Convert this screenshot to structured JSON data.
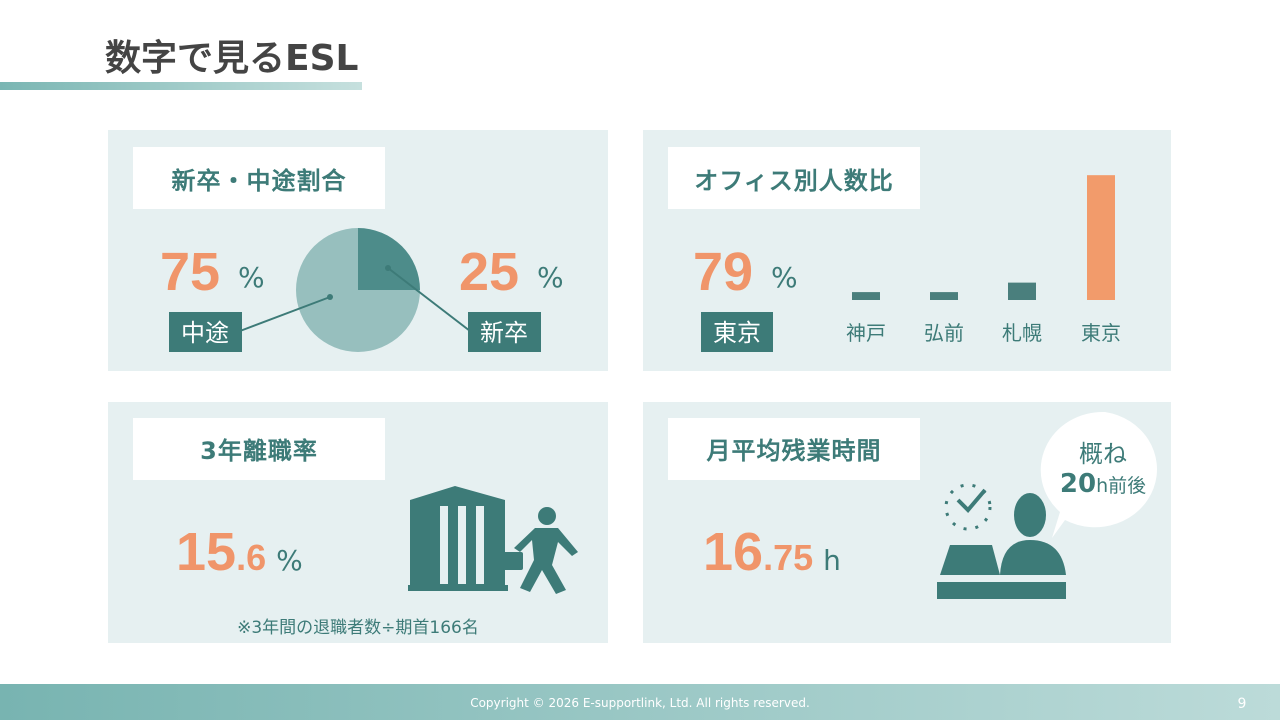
{
  "title": "数字で見るESL",
  "chart_data": [
    {
      "type": "pie",
      "title": "新卒・中途割合",
      "categories": [
        "中途",
        "新卒"
      ],
      "values": [
        75,
        25
      ],
      "colors": [
        "#97bfbe",
        "#4d8c8a"
      ],
      "unit": "%"
    },
    {
      "type": "bar",
      "title": "オフィス別人数比",
      "categories": [
        "神戸",
        "弘前",
        "札幌",
        "東京"
      ],
      "values": [
        5,
        5,
        11,
        79
      ],
      "colors": [
        "#4a7f7d",
        "#4a7f7d",
        "#4a7f7d",
        "#f29b6b"
      ],
      "highlight": 3,
      "unit": "%"
    }
  ],
  "turnover": {
    "title": "3年離職率",
    "integer": "15",
    "decimal": ".6",
    "unit": "%",
    "note": "※3年間の退職者数÷期首166名"
  },
  "overtime": {
    "title": "月平均残業時間",
    "integer": "16",
    "decimal": ".75",
    "unit": "h",
    "bubble": {
      "line1": "概ね",
      "number": "20",
      "suffix": "h前後"
    }
  },
  "footer": {
    "copyright": "Copyright © 2026 E-supportlink, Ltd.  All rights reserved.",
    "page": "9"
  }
}
